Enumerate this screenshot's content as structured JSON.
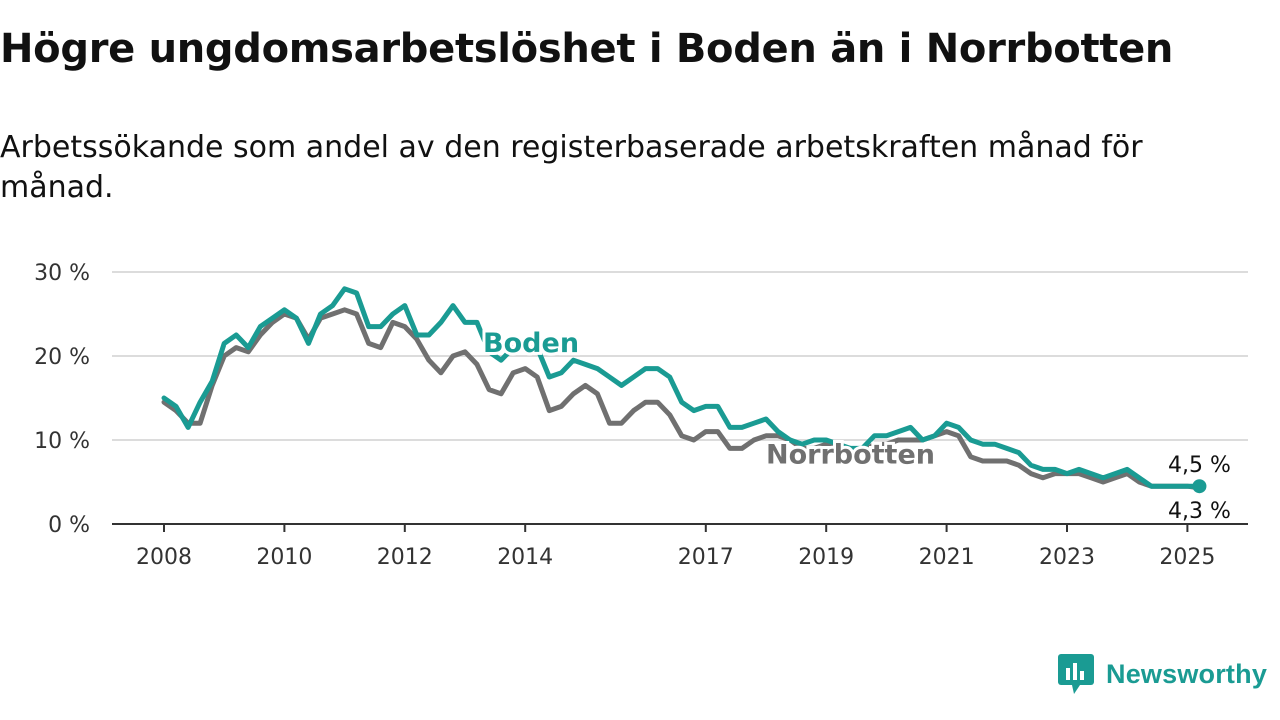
{
  "title": "Högre ungdomsarbetslöshet i Boden än i Norrbotten",
  "subtitle": "Arbetssökande som andel av den registerbaserade arbetskraften månad för månad.",
  "brand": {
    "name": "Newsworthy",
    "icon": "newsworthy-logo-icon",
    "color": "#1a9b93"
  },
  "chart_data": {
    "type": "line",
    "title": "Högre ungdomsarbetslöshet i Boden än i Norrbotten",
    "subtitle": "Arbetssökande som andel av den registerbaserade arbetskraften månad för månad.",
    "xlabel": "",
    "ylabel": "",
    "ylim": [
      0,
      30
    ],
    "xlim": [
      2008.0,
      2025.2
    ],
    "y_ticks": [
      0,
      10,
      20,
      30
    ],
    "y_tick_labels": [
      "0 %",
      "10 %",
      "20 %",
      "30 %"
    ],
    "x_ticks": [
      2008,
      2010,
      2012,
      2014,
      2017,
      2019,
      2021,
      2023,
      2025
    ],
    "x_tick_labels": [
      "2008",
      "2010",
      "2012",
      "2014",
      "2017",
      "2019",
      "2021",
      "2023",
      "2025"
    ],
    "grid": true,
    "series": [
      {
        "name": "Boden",
        "color": "#1a9b93",
        "end_label": "4,5 %",
        "x": [
          2008.0,
          2008.2,
          2008.4,
          2008.6,
          2008.8,
          2009.0,
          2009.2,
          2009.4,
          2009.6,
          2009.8,
          2010.0,
          2010.2,
          2010.4,
          2010.6,
          2010.8,
          2011.0,
          2011.2,
          2011.4,
          2011.6,
          2011.8,
          2012.0,
          2012.2,
          2012.4,
          2012.6,
          2012.8,
          2013.0,
          2013.2,
          2013.4,
          2013.6,
          2013.8,
          2014.0,
          2014.2,
          2014.4,
          2014.6,
          2014.8,
          2015.0,
          2015.2,
          2015.4,
          2015.6,
          2015.8,
          2016.0,
          2016.2,
          2016.4,
          2016.6,
          2016.8,
          2017.0,
          2017.2,
          2017.4,
          2017.6,
          2017.8,
          2018.0,
          2018.2,
          2018.4,
          2018.6,
          2018.8,
          2019.0,
          2019.2,
          2019.4,
          2019.6,
          2019.8,
          2020.0,
          2020.2,
          2020.4,
          2020.6,
          2020.8,
          2021.0,
          2021.2,
          2021.4,
          2021.6,
          2021.8,
          2022.0,
          2022.2,
          2022.4,
          2022.6,
          2022.8,
          2023.0,
          2023.2,
          2023.4,
          2023.6,
          2023.8,
          2024.0,
          2024.2,
          2024.4,
          2024.6,
          2024.8,
          2025.0,
          2025.2
        ],
        "values": [
          15,
          14,
          11.5,
          14.5,
          17,
          21.5,
          22.5,
          21,
          23.5,
          24.5,
          25.5,
          24.5,
          21.5,
          25,
          26,
          28,
          27.5,
          23.5,
          23.5,
          25,
          26,
          22.5,
          22.5,
          24,
          26,
          24,
          24,
          20.5,
          19.5,
          21,
          21,
          21,
          17.5,
          18,
          19.5,
          19,
          18.5,
          17.5,
          16.5,
          17.5,
          18.5,
          18.5,
          17.5,
          14.5,
          13.5,
          14,
          14,
          11.5,
          11.5,
          12,
          12.5,
          11,
          10,
          9.5,
          10,
          10,
          9.5,
          9,
          9,
          10.5,
          10.5,
          11,
          11.5,
          10,
          10.5,
          12,
          11.5,
          10,
          9.5,
          9.5,
          9,
          8.5,
          7,
          6.5,
          6.5,
          6,
          6.5,
          6,
          5.5,
          6,
          6.5,
          5.5,
          4.5,
          4.5,
          4.5,
          4.5,
          4.5
        ]
      },
      {
        "name": "Norrbotten",
        "color": "#707070",
        "end_label": "4,3 %",
        "x": [
          2008.0,
          2008.2,
          2008.4,
          2008.6,
          2008.8,
          2009.0,
          2009.2,
          2009.4,
          2009.6,
          2009.8,
          2010.0,
          2010.2,
          2010.4,
          2010.6,
          2010.8,
          2011.0,
          2011.2,
          2011.4,
          2011.6,
          2011.8,
          2012.0,
          2012.2,
          2012.4,
          2012.6,
          2012.8,
          2013.0,
          2013.2,
          2013.4,
          2013.6,
          2013.8,
          2014.0,
          2014.2,
          2014.4,
          2014.6,
          2014.8,
          2015.0,
          2015.2,
          2015.4,
          2015.6,
          2015.8,
          2016.0,
          2016.2,
          2016.4,
          2016.6,
          2016.8,
          2017.0,
          2017.2,
          2017.4,
          2017.6,
          2017.8,
          2018.0,
          2018.2,
          2018.4,
          2018.6,
          2018.8,
          2019.0,
          2019.2,
          2019.4,
          2019.6,
          2019.8,
          2020.0,
          2020.2,
          2020.4,
          2020.6,
          2020.8,
          2021.0,
          2021.2,
          2021.4,
          2021.6,
          2021.8,
          2022.0,
          2022.2,
          2022.4,
          2022.6,
          2022.8,
          2023.0,
          2023.2,
          2023.4,
          2023.6,
          2023.8,
          2024.0,
          2024.2,
          2024.4,
          2024.6,
          2024.8,
          2025.0,
          2025.2
        ],
        "values": [
          14.5,
          13.5,
          12,
          12,
          16.5,
          20,
          21,
          20.5,
          22.5,
          24,
          25,
          24.5,
          22,
          24.5,
          25,
          25.5,
          25,
          21.5,
          21,
          24,
          23.5,
          22,
          19.5,
          18,
          20,
          20.5,
          19,
          16,
          15.5,
          18,
          18.5,
          17.5,
          13.5,
          14,
          15.5,
          16.5,
          15.5,
          12,
          12,
          13.5,
          14.5,
          14.5,
          13,
          10.5,
          10,
          11,
          11,
          9,
          9,
          10,
          10.5,
          10.5,
          10,
          9,
          9,
          9.5,
          9,
          9,
          8.5,
          9.5,
          9.5,
          10,
          10,
          10,
          10.5,
          11,
          10.5,
          8,
          7.5,
          7.5,
          7.5,
          7,
          6,
          5.5,
          6,
          6,
          6,
          5.5,
          5,
          5.5,
          6,
          5,
          4.5,
          4.5,
          4.5,
          4.5,
          4.3
        ]
      }
    ]
  }
}
